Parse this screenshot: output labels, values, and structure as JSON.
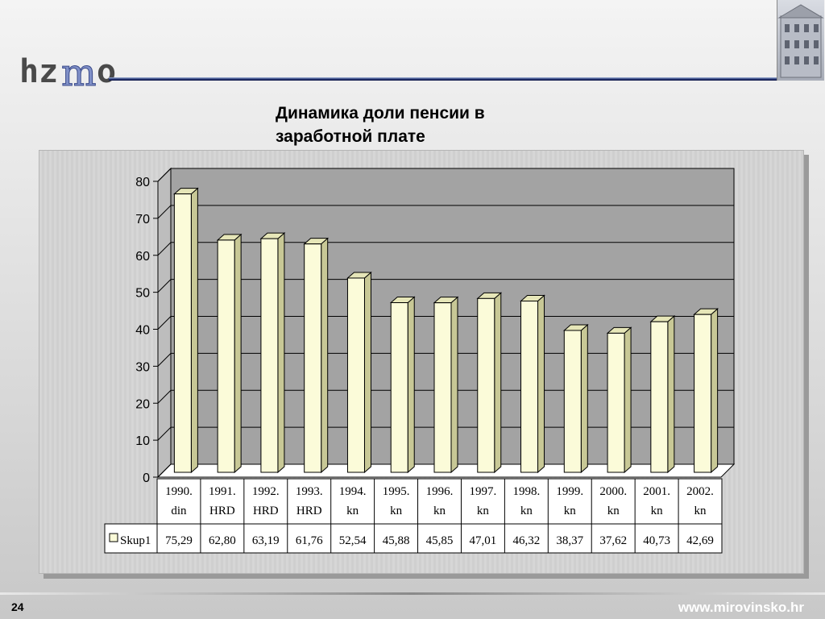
{
  "header": {
    "logo_text": "hzmo",
    "title": "Динамика доли пенсии в заработной плате"
  },
  "chart_data": {
    "type": "bar",
    "title": "Динамика доли пенсии в заработной плате",
    "categories": [
      "1990. din",
      "1991. HRD",
      "1992. HRD",
      "1993. HRD",
      "1994. kn",
      "1995. kn",
      "1996. kn",
      "1997. kn",
      "1998. kn",
      "1999. kn",
      "2000. kn",
      "2001. kn",
      "2002. kn"
    ],
    "category_lines": [
      [
        "1990.",
        "din"
      ],
      [
        "1991.",
        "HRD"
      ],
      [
        "1992.",
        "HRD"
      ],
      [
        "1993.",
        "HRD"
      ],
      [
        "1994.",
        "kn"
      ],
      [
        "1995.",
        "kn"
      ],
      [
        "1996.",
        "kn"
      ],
      [
        "1997.",
        "kn"
      ],
      [
        "1998.",
        "kn"
      ],
      [
        "1999.",
        "kn"
      ],
      [
        "2000.",
        "kn"
      ],
      [
        "2001.",
        "kn"
      ],
      [
        "2002.",
        "kn"
      ]
    ],
    "series": [
      {
        "name": "Skup1",
        "values": [
          75.29,
          62.8,
          63.19,
          61.76,
          52.54,
          45.88,
          45.85,
          47.01,
          46.32,
          38.37,
          37.62,
          40.73,
          42.69
        ],
        "labels": [
          "75,29",
          "62,80",
          "63,19",
          "61,76",
          "52,54",
          "45,88",
          "45,85",
          "47,01",
          "46,32",
          "38,37",
          "37,62",
          "40,73",
          "42,69"
        ]
      }
    ],
    "yticks": [
      "0",
      "10",
      "20",
      "30",
      "40",
      "50",
      "60",
      "70",
      "80"
    ],
    "ylim": [
      0,
      80
    ],
    "grid": true,
    "data_table": true,
    "colors": {
      "bar_front": "#fbfbd9",
      "bar_side": "#c8c896",
      "bar_top": "#e6e6b8",
      "plot_bg": "#a3a3a3",
      "floor": "#ffffff"
    }
  },
  "footer": {
    "slide_number": "24",
    "url": "www.mirovinsko.hr"
  }
}
